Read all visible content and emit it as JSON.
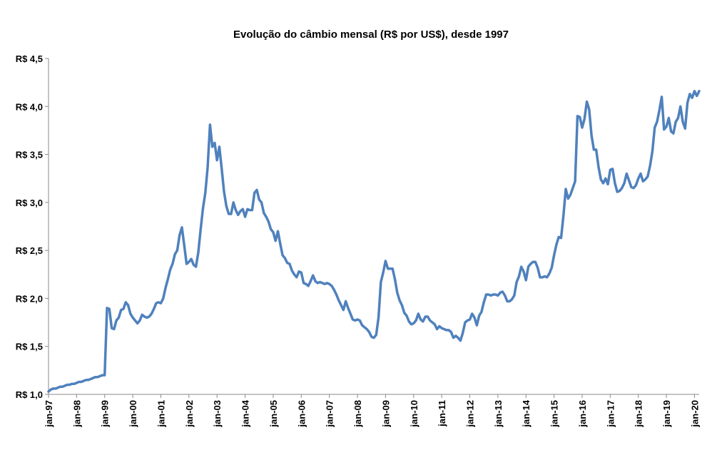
{
  "chart_data": {
    "type": "line",
    "title": "Evolução do câmbio mensal (R$ por US$), desde 1997",
    "xlabel": "",
    "ylabel": "",
    "ylim": [
      1.0,
      4.5
    ],
    "x_start": "jan-97",
    "x_end": "jan-20",
    "y_ticks": [
      {
        "value": 1.0,
        "label": "R$ 1,0"
      },
      {
        "value": 1.5,
        "label": "R$ 1,5"
      },
      {
        "value": 2.0,
        "label": "R$ 2,0"
      },
      {
        "value": 2.5,
        "label": "R$ 2,5"
      },
      {
        "value": 3.0,
        "label": "R$ 3,0"
      },
      {
        "value": 3.5,
        "label": "R$ 3,5"
      },
      {
        "value": 4.0,
        "label": "R$ 4,0"
      },
      {
        "value": 4.5,
        "label": "R$ 4,5"
      }
    ],
    "x_ticks": [
      "jan-97",
      "jan-98",
      "jan-99",
      "jan-00",
      "jan-01",
      "jan-02",
      "jan-03",
      "jan-04",
      "jan-05",
      "jan-06",
      "jan-07",
      "jan-08",
      "jan-09",
      "jan-10",
      "jan-11",
      "jan-12",
      "jan-13",
      "jan-14",
      "jan-15",
      "jan-16",
      "jan-17",
      "jan-18",
      "jan-19",
      "jan-20"
    ],
    "grid": false,
    "legend": "none",
    "line_color": "#4f81bd",
    "series": [
      {
        "values": [
          1.03,
          1.05,
          1.06,
          1.06,
          1.07,
          1.08,
          1.08,
          1.09,
          1.1,
          1.1,
          1.11,
          1.11,
          1.12,
          1.13,
          1.13,
          1.14,
          1.15,
          1.15,
          1.16,
          1.17,
          1.18,
          1.18,
          1.19,
          1.2,
          1.2,
          1.9,
          1.89,
          1.69,
          1.68,
          1.77,
          1.8,
          1.88,
          1.89,
          1.96,
          1.93,
          1.84,
          1.8,
          1.77,
          1.74,
          1.77,
          1.83,
          1.81,
          1.8,
          1.81,
          1.84,
          1.89,
          1.95,
          1.96,
          1.95,
          2.0,
          2.11,
          2.2,
          2.3,
          2.36,
          2.46,
          2.5,
          2.66,
          2.74,
          2.55,
          2.36,
          2.38,
          2.41,
          2.35,
          2.33,
          2.48,
          2.72,
          2.94,
          3.1,
          3.37,
          3.81,
          3.58,
          3.62,
          3.44,
          3.58,
          3.35,
          3.11,
          2.96,
          2.88,
          2.88,
          3.0,
          2.92,
          2.87,
          2.91,
          2.93,
          2.85,
          2.93,
          2.92,
          2.92,
          3.1,
          3.13,
          3.03,
          3.0,
          2.89,
          2.85,
          2.8,
          2.72,
          2.69,
          2.6,
          2.7,
          2.57,
          2.45,
          2.42,
          2.37,
          2.36,
          2.29,
          2.25,
          2.22,
          2.28,
          2.27,
          2.16,
          2.15,
          2.13,
          2.18,
          2.24,
          2.18,
          2.16,
          2.17,
          2.16,
          2.15,
          2.16,
          2.15,
          2.13,
          2.09,
          2.04,
          1.98,
          1.93,
          1.88,
          1.97,
          1.9,
          1.84,
          1.78,
          1.77,
          1.78,
          1.77,
          1.72,
          1.7,
          1.68,
          1.65,
          1.6,
          1.59,
          1.62,
          1.8,
          2.17,
          2.27,
          2.39,
          2.31,
          2.31,
          2.31,
          2.2,
          2.06,
          1.98,
          1.93,
          1.85,
          1.82,
          1.76,
          1.73,
          1.74,
          1.77,
          1.84,
          1.78,
          1.76,
          1.81,
          1.81,
          1.77,
          1.75,
          1.73,
          1.68,
          1.71,
          1.69,
          1.68,
          1.67,
          1.67,
          1.65,
          1.59,
          1.61,
          1.59,
          1.56,
          1.64,
          1.75,
          1.77,
          1.78,
          1.84,
          1.8,
          1.72,
          1.82,
          1.86,
          1.96,
          2.04,
          2.04,
          2.03,
          2.04,
          2.04,
          2.03,
          2.06,
          2.07,
          2.03,
          1.97,
          1.97,
          1.99,
          2.03,
          2.17,
          2.23,
          2.33,
          2.28,
          2.19,
          2.33,
          2.36,
          2.38,
          2.38,
          2.32,
          2.22,
          2.22,
          2.23,
          2.22,
          2.26,
          2.32,
          2.45,
          2.56,
          2.64,
          2.63,
          2.86,
          3.14,
          3.04,
          3.08,
          3.15,
          3.22,
          3.9,
          3.89,
          3.78,
          3.87,
          4.05,
          3.97,
          3.7,
          3.55,
          3.55,
          3.37,
          3.24,
          3.2,
          3.25,
          3.19,
          3.34,
          3.35,
          3.2,
          3.11,
          3.12,
          3.15,
          3.2,
          3.3,
          3.23,
          3.16,
          3.15,
          3.18,
          3.25,
          3.3,
          3.22,
          3.24,
          3.27,
          3.38,
          3.53,
          3.78,
          3.84,
          3.96,
          4.1,
          3.76,
          3.79,
          3.88,
          3.74,
          3.72,
          3.84,
          3.88,
          4.0,
          3.84,
          3.77,
          4.04,
          4.13,
          4.09,
          4.16,
          4.11,
          4.16
        ]
      }
    ]
  }
}
